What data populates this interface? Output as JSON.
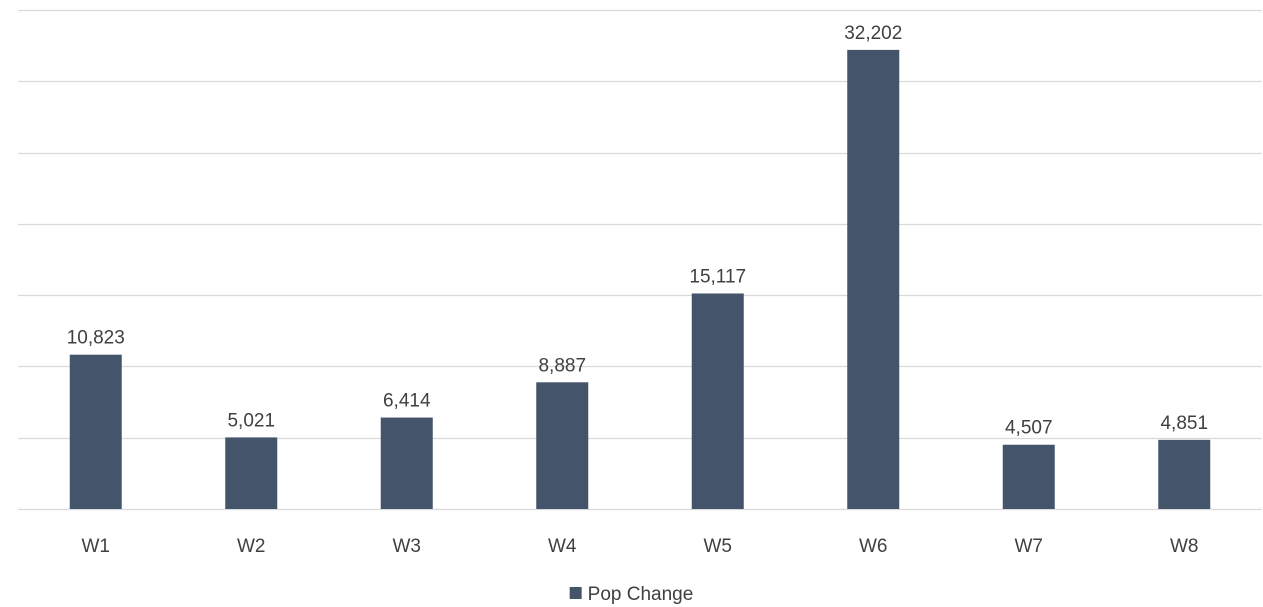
{
  "chart_data": {
    "type": "bar",
    "categories": [
      "W1",
      "W2",
      "W3",
      "W4",
      "W5",
      "W6",
      "W7",
      "W8"
    ],
    "series": [
      {
        "name": "Pop Change",
        "values": [
          10823,
          5021,
          6414,
          8887,
          15117,
          32202,
          4507,
          4851
        ],
        "color": "#44546A"
      }
    ],
    "data_labels": [
      "10,823",
      "5,021",
      "6,414",
      "8,887",
      "15,117",
      "32,202",
      "4,507",
      "4,851"
    ],
    "ylim": [
      0,
      35000
    ],
    "y_gridline_step": 5000,
    "grid": true,
    "y_tick_labels_shown": false,
    "legend_position": "bottom",
    "gridline_color": "#d9d9d9"
  }
}
